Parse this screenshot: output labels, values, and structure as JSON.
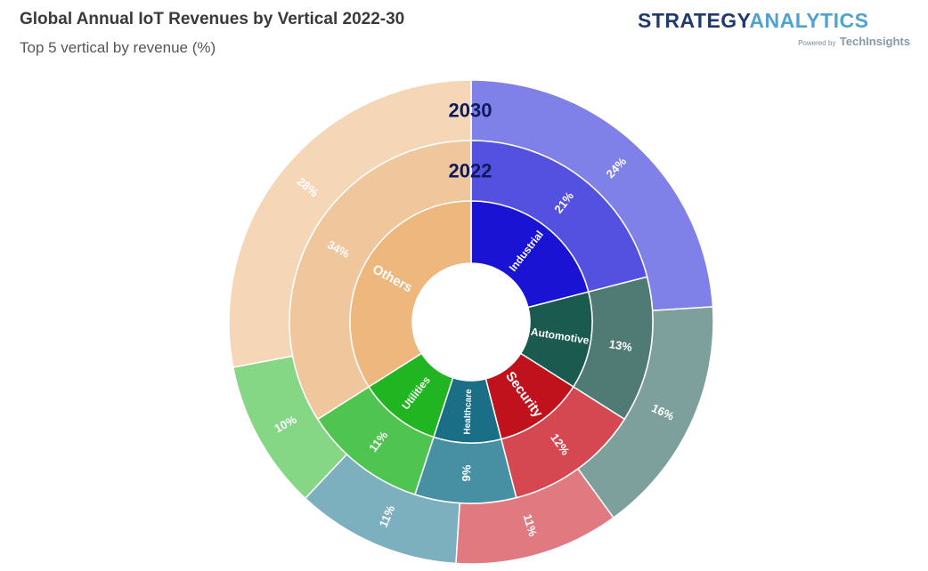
{
  "header": {
    "title": "Global Annual IoT Revenues by Vertical 2022-30",
    "subtitle": "Top 5 vertical by revenue (%)"
  },
  "logo": {
    "strategy": "STRATEGY",
    "analytics": "ANALYTICS",
    "powered_by": "Powered by",
    "techinsights": "TechInsights"
  },
  "chart_data": {
    "type": "sunburst",
    "title": "Global Annual IoT Revenues by Vertical 2022-30",
    "subtitle": "Top 5 vertical by revenue (%)",
    "ring_labels": [
      "2022",
      "2030"
    ],
    "categories": [
      "Industrial",
      "Automotive",
      "Security",
      "Healthcare",
      "Utilities",
      "Others"
    ],
    "series": [
      {
        "name": "2022",
        "values": [
          21,
          13,
          12,
          9,
          11,
          34
        ],
        "labels": [
          "21%",
          "13%",
          "12%",
          "9%",
          "11%",
          "34%"
        ]
      },
      {
        "name": "2030",
        "values": [
          24,
          16,
          11,
          11,
          10,
          28
        ],
        "labels": [
          "24%",
          "16%",
          "11%",
          "11%",
          "10%",
          "28%"
        ]
      }
    ],
    "colors": {
      "inner": [
        "#1a13d4",
        "#1a5a4f",
        "#c0121c",
        "#1a6f86",
        "#22b522",
        "#edb77e"
      ],
      "middle": [
        "#5450e0",
        "#4f7b74",
        "#d54852",
        "#4790a3",
        "#50c450",
        "#f0c69d"
      ],
      "outer": [
        "#7f80e8",
        "#7ea09c",
        "#e07a80",
        "#7cb0be",
        "#85d685",
        "#f5d7b8"
      ]
    }
  }
}
